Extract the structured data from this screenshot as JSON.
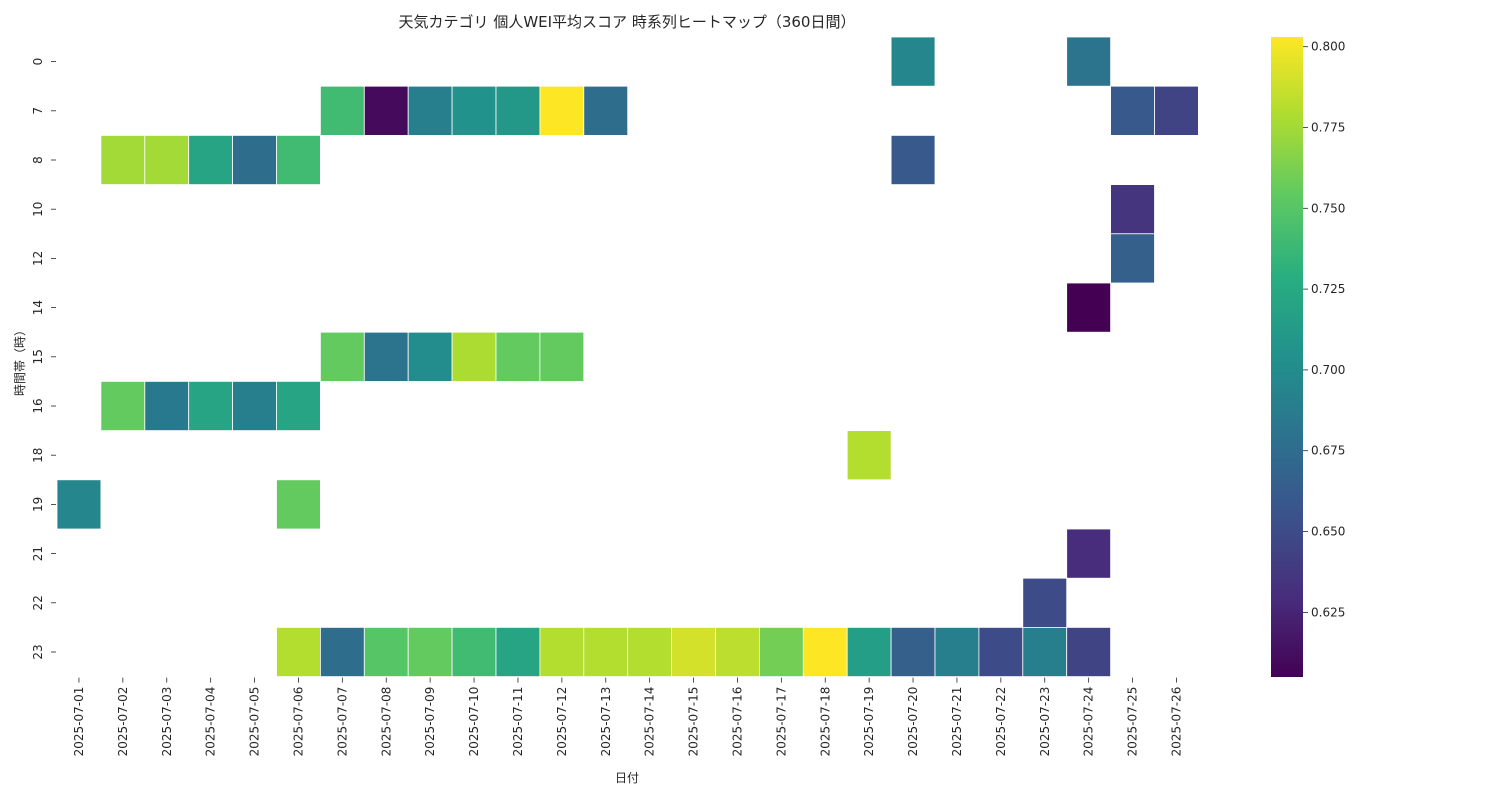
{
  "chart_data": {
    "type": "heatmap",
    "title": "天気カテゴリ 個人WEI平均スコア 時系列ヒートマップ（360日間）",
    "xlabel": "日付",
    "ylabel": "時間帯（時）",
    "colormap": "viridis",
    "colorbar": {
      "min": 0.605,
      "max": 0.803,
      "ticks": [
        0.625,
        0.65,
        0.675,
        0.7,
        0.725,
        0.75,
        0.775,
        0.8
      ],
      "tick_labels": [
        "0.625",
        "0.650",
        "0.675",
        "0.700",
        "0.725",
        "0.750",
        "0.775",
        "0.800"
      ]
    },
    "x": [
      "2025-07-01",
      "2025-07-02",
      "2025-07-03",
      "2025-07-04",
      "2025-07-05",
      "2025-07-06",
      "2025-07-07",
      "2025-07-08",
      "2025-07-09",
      "2025-07-10",
      "2025-07-11",
      "2025-07-12",
      "2025-07-13",
      "2025-07-14",
      "2025-07-15",
      "2025-07-16",
      "2025-07-17",
      "2025-07-18",
      "2025-07-19",
      "2025-07-20",
      "2025-07-21",
      "2025-07-22",
      "2025-07-23",
      "2025-07-24",
      "2025-07-25",
      "2025-07-26"
    ],
    "y": [
      "0",
      "7",
      "8",
      "10",
      "12",
      "14",
      "15",
      "16",
      "18",
      "19",
      "21",
      "22",
      "23"
    ],
    "cells": [
      {
        "x": "2025-07-20",
        "y": "0",
        "value": 0.695
      },
      {
        "x": "2025-07-24",
        "y": "0",
        "value": 0.68
      },
      {
        "x": "2025-07-07",
        "y": "7",
        "value": 0.74
      },
      {
        "x": "2025-07-08",
        "y": "7",
        "value": 0.61
      },
      {
        "x": "2025-07-09",
        "y": "7",
        "value": 0.69
      },
      {
        "x": "2025-07-10",
        "y": "7",
        "value": 0.705
      },
      {
        "x": "2025-07-11",
        "y": "7",
        "value": 0.71
      },
      {
        "x": "2025-07-12",
        "y": "7",
        "value": 0.803
      },
      {
        "x": "2025-07-13",
        "y": "7",
        "value": 0.675
      },
      {
        "x": "2025-07-25",
        "y": "7",
        "value": 0.66
      },
      {
        "x": "2025-07-26",
        "y": "7",
        "value": 0.645
      },
      {
        "x": "2025-07-02",
        "y": "8",
        "value": 0.775
      },
      {
        "x": "2025-07-03",
        "y": "8",
        "value": 0.775
      },
      {
        "x": "2025-07-04",
        "y": "8",
        "value": 0.72
      },
      {
        "x": "2025-07-05",
        "y": "8",
        "value": 0.675
      },
      {
        "x": "2025-07-06",
        "y": "8",
        "value": 0.74
      },
      {
        "x": "2025-07-20",
        "y": "8",
        "value": 0.66
      },
      {
        "x": "2025-07-25",
        "y": "10",
        "value": 0.635
      },
      {
        "x": "2025-07-25",
        "y": "12",
        "value": 0.665
      },
      {
        "x": "2025-07-24",
        "y": "14",
        "value": 0.605
      },
      {
        "x": "2025-07-07",
        "y": "15",
        "value": 0.755
      },
      {
        "x": "2025-07-08",
        "y": "15",
        "value": 0.68
      },
      {
        "x": "2025-07-09",
        "y": "15",
        "value": 0.7
      },
      {
        "x": "2025-07-10",
        "y": "15",
        "value": 0.778
      },
      {
        "x": "2025-07-11",
        "y": "15",
        "value": 0.755
      },
      {
        "x": "2025-07-12",
        "y": "15",
        "value": 0.755
      },
      {
        "x": "2025-07-02",
        "y": "16",
        "value": 0.755
      },
      {
        "x": "2025-07-03",
        "y": "16",
        "value": 0.685
      },
      {
        "x": "2025-07-04",
        "y": "16",
        "value": 0.72
      },
      {
        "x": "2025-07-05",
        "y": "16",
        "value": 0.69
      },
      {
        "x": "2025-07-06",
        "y": "16",
        "value": 0.72
      },
      {
        "x": "2025-07-19",
        "y": "18",
        "value": 0.78
      },
      {
        "x": "2025-07-01",
        "y": "19",
        "value": 0.695
      },
      {
        "x": "2025-07-06",
        "y": "19",
        "value": 0.755
      },
      {
        "x": "2025-07-24",
        "y": "21",
        "value": 0.63
      },
      {
        "x": "2025-07-23",
        "y": "22",
        "value": 0.65
      },
      {
        "x": "2025-07-06",
        "y": "23",
        "value": 0.78
      },
      {
        "x": "2025-07-07",
        "y": "23",
        "value": 0.675
      },
      {
        "x": "2025-07-08",
        "y": "23",
        "value": 0.75
      },
      {
        "x": "2025-07-09",
        "y": "23",
        "value": 0.755
      },
      {
        "x": "2025-07-10",
        "y": "23",
        "value": 0.74
      },
      {
        "x": "2025-07-11",
        "y": "23",
        "value": 0.72
      },
      {
        "x": "2025-07-12",
        "y": "23",
        "value": 0.78
      },
      {
        "x": "2025-07-13",
        "y": "23",
        "value": 0.78
      },
      {
        "x": "2025-07-14",
        "y": "23",
        "value": 0.78
      },
      {
        "x": "2025-07-15",
        "y": "23",
        "value": 0.79
      },
      {
        "x": "2025-07-16",
        "y": "23",
        "value": 0.783
      },
      {
        "x": "2025-07-17",
        "y": "23",
        "value": 0.76
      },
      {
        "x": "2025-07-18",
        "y": "23",
        "value": 0.803
      },
      {
        "x": "2025-07-19",
        "y": "23",
        "value": 0.715
      },
      {
        "x": "2025-07-20",
        "y": "23",
        "value": 0.665
      },
      {
        "x": "2025-07-21",
        "y": "23",
        "value": 0.69
      },
      {
        "x": "2025-07-22",
        "y": "23",
        "value": 0.65
      },
      {
        "x": "2025-07-23",
        "y": "23",
        "value": 0.69
      },
      {
        "x": "2025-07-24",
        "y": "23",
        "value": 0.645
      }
    ]
  }
}
